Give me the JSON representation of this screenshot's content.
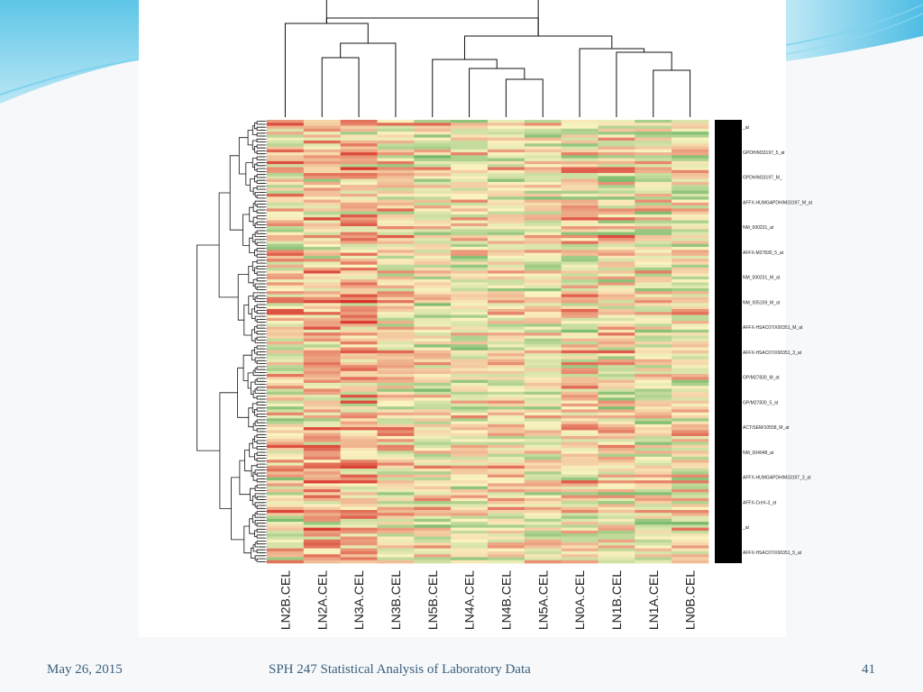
{
  "slide": {
    "footer_date": "May 26, 2015",
    "footer_title": "SPH 247 Statistical Analysis of Laboratory Data",
    "page_number": "41",
    "accent_color": "#5cc3e6"
  },
  "chart_data": {
    "type": "heatmap",
    "title": "",
    "columns": [
      "LN2B.CEL",
      "LN2A.CEL",
      "LN3A.CEL",
      "LN3B.CEL",
      "LN5B.CEL",
      "LN4A.CEL",
      "LN4B.CEL",
      "LN5A.CEL",
      "LN0A.CEL",
      "LN1B.CEL",
      "LN1A.CEL",
      "LN0B.CEL"
    ],
    "row_labels_visible": [
      "_at",
      "GPDH/M33197_5_at",
      "GPDH/M33197_M_",
      "AFFX-HUMGAPDH/M33197_M_at",
      "NM_000231_at",
      "AFFX-M27830_5_at",
      "NM_000231_M_at",
      "NM_005159_M_at",
      "AFFX-HSAC07/X00351_M_at",
      "AFFX-HSAC07/X00351_3_at",
      "GP/M27830_M_at",
      "GP/M27830_5_at",
      "ACT/SEM/10558_M_at",
      "NM_004048_at",
      "AFFX-HUMGAPDH/M33197_3_at",
      "AFFX-CreX-3_at",
      "_at",
      "AFFX-HSAC07/X00351_5_at"
    ],
    "color_scale": {
      "low": "#2f9a3a",
      "mid": "#fbf3c0",
      "high": "#d73027"
    },
    "column_dendrogram": "present",
    "row_dendrogram": "present"
  }
}
